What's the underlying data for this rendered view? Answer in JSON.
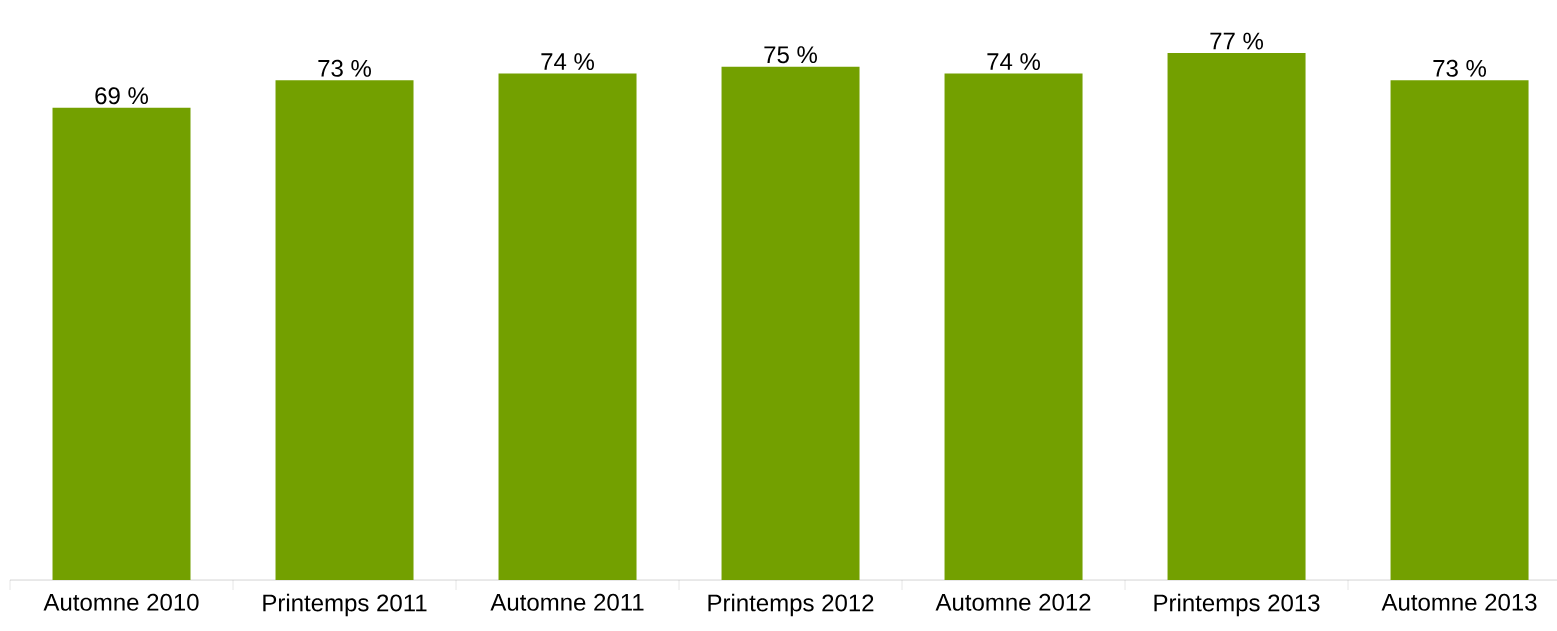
{
  "chart_data": {
    "type": "bar",
    "categories": [
      "Automne 2010",
      "Printemps 2011",
      "Automne 2011",
      "Printemps 2012",
      "Automne 2012",
      "Printemps 2013",
      "Automne 2013"
    ],
    "values": [
      69,
      73,
      74,
      75,
      74,
      77,
      73
    ],
    "value_labels": [
      "69 %",
      "73 %",
      "74 %",
      "75 %",
      "74 %",
      "77 %",
      "73 %"
    ],
    "color": "#73a000",
    "tick_labels": "x"
  }
}
